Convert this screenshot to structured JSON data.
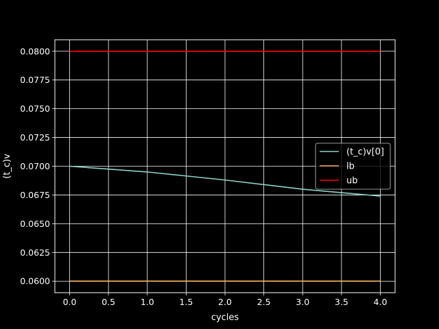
{
  "chart_data": {
    "type": "line",
    "title": "",
    "xlabel": "cycles",
    "ylabel": "(t_c)v",
    "xlim": [
      -0.19,
      4.19
    ],
    "ylim": [
      0.059,
      0.081
    ],
    "xticks": [
      0.0,
      0.5,
      1.0,
      1.5,
      2.0,
      2.5,
      3.0,
      3.5,
      4.0
    ],
    "xtick_labels": [
      "0.0",
      "0.5",
      "1.0",
      "1.5",
      "2.0",
      "2.5",
      "3.0",
      "3.5",
      "4.0"
    ],
    "yticks": [
      0.06,
      0.0625,
      0.065,
      0.0675,
      0.07,
      0.0725,
      0.075,
      0.0775,
      0.08
    ],
    "ytick_labels": [
      "0.0600",
      "0.0625",
      "0.0650",
      "0.0675",
      "0.0700",
      "0.0725",
      "0.0750",
      "0.0775",
      "0.0800"
    ],
    "grid": true,
    "legend_position": "center-right",
    "series": [
      {
        "name": "(t_c)v[0]",
        "color": "#8dd3c7",
        "x": [
          0,
          0.5,
          1,
          1.5,
          2,
          2.5,
          3,
          3.5,
          4
        ],
        "y": [
          0.07,
          0.06975,
          0.0695,
          0.06915,
          0.0688,
          0.0684,
          0.068,
          0.0677,
          0.0674
        ]
      },
      {
        "name": "lb",
        "color": "#feb462",
        "x": [
          0,
          4
        ],
        "y": [
          0.06,
          0.06
        ]
      },
      {
        "name": "ub",
        "color": "#ff0000",
        "x": [
          0,
          4
        ],
        "y": [
          0.08,
          0.08
        ]
      }
    ]
  }
}
